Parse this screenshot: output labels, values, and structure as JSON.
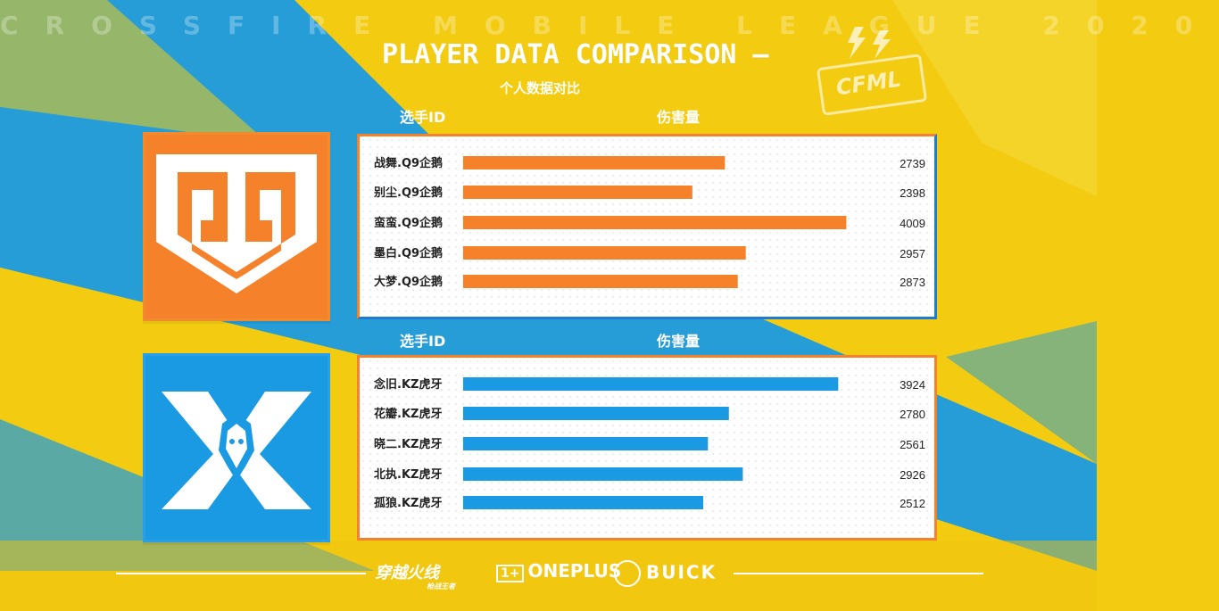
{
  "header": {
    "league": "CROSSFIRE MOBILE LEAGUE 2020",
    "title": "PLAYER DATA COMPARISON —",
    "subtitle": "个人数据对比"
  },
  "columns": {
    "player_id": "选手ID",
    "damage": "伤害量"
  },
  "colors": {
    "team1": "#f5822a",
    "team2": "#1a9ae2",
    "background": "#f3cc12"
  },
  "sponsors": {
    "cf": "穿越火线",
    "cf_sub": "枪战王者",
    "oneplus": "ONEPLUS",
    "buick": "BUICK"
  },
  "badge": "CFML",
  "chart_data": [
    {
      "type": "bar",
      "orientation": "horizontal",
      "team": "Q9",
      "categories": [
        "战舞.Q9企鹅",
        "别尘.Q9企鹅",
        "蛮蛮.Q9企鹅",
        "墨白.Q9企鹅",
        "大梦.Q9企鹅"
      ],
      "values": [
        2739,
        2398,
        4009,
        2957,
        2873
      ],
      "xlabel": "伤害量",
      "ylabel": "选手ID",
      "xlim": [
        0,
        4500
      ]
    },
    {
      "type": "bar",
      "orientation": "horizontal",
      "team": "KZ",
      "categories": [
        "念旧.KZ虎牙",
        "花瓣.KZ虎牙",
        "晓二.KZ虎牙",
        "北执.KZ虎牙",
        "孤狼.KZ虎牙"
      ],
      "values": [
        3924,
        2780,
        2561,
        2926,
        2512
      ],
      "xlabel": "伤害量",
      "ylabel": "选手ID",
      "xlim": [
        0,
        4500
      ]
    }
  ]
}
